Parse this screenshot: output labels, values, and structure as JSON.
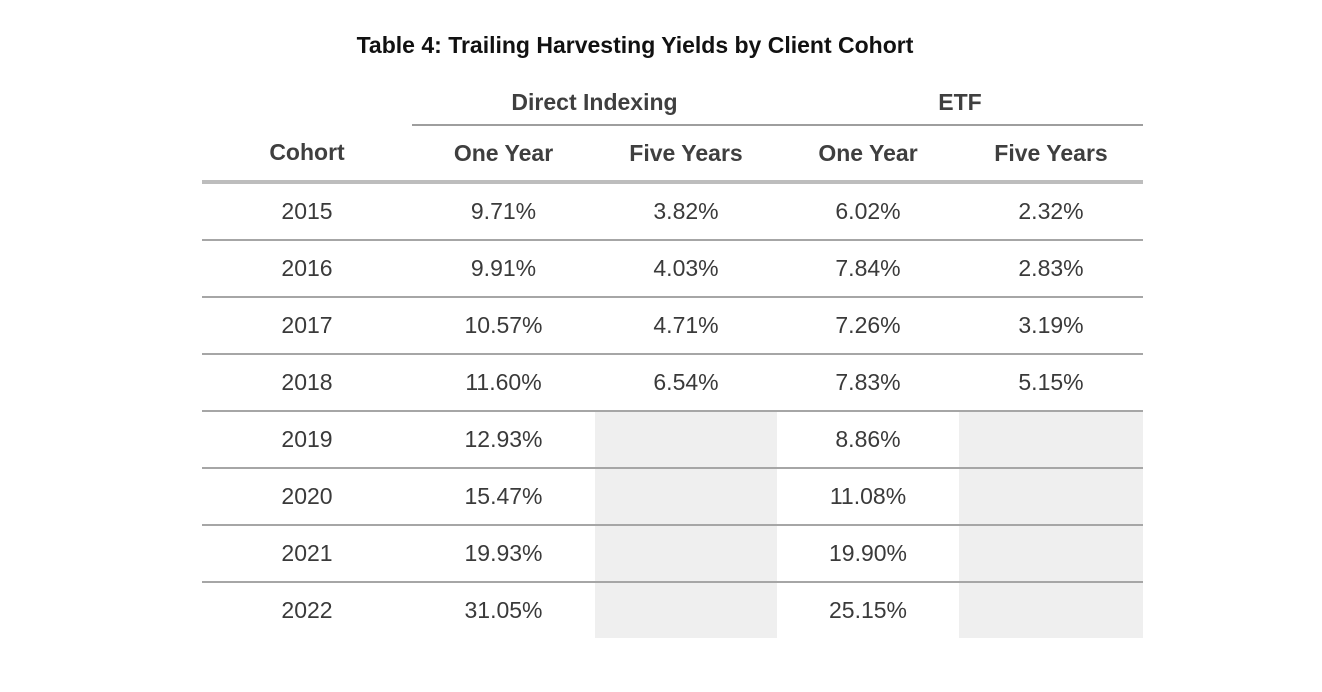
{
  "title": "Table 4: Trailing Harvesting Yields by Client Cohort",
  "column_groups": [
    {
      "label": "Direct Indexing",
      "span": 2
    },
    {
      "label": "ETF",
      "span": 2
    }
  ],
  "columns": [
    "Cohort",
    "One Year",
    "Five Years",
    "One Year",
    "Five Years"
  ],
  "rows": [
    {
      "cohort": "2015",
      "di_one": "9.71%",
      "di_five": "3.82%",
      "etf_one": "6.02%",
      "etf_five": "2.32%"
    },
    {
      "cohort": "2016",
      "di_one": "9.91%",
      "di_five": "4.03%",
      "etf_one": "7.84%",
      "etf_five": "2.83%"
    },
    {
      "cohort": "2017",
      "di_one": "10.57%",
      "di_five": "4.71%",
      "etf_one": "7.26%",
      "etf_five": "3.19%"
    },
    {
      "cohort": "2018",
      "di_one": "11.60%",
      "di_five": "6.54%",
      "etf_one": "7.83%",
      "etf_five": "5.15%"
    },
    {
      "cohort": "2019",
      "di_one": "12.93%",
      "di_five": "",
      "etf_one": "8.86%",
      "etf_five": ""
    },
    {
      "cohort": "2020",
      "di_one": "15.47%",
      "di_five": "",
      "etf_one": "11.08%",
      "etf_five": ""
    },
    {
      "cohort": "2021",
      "di_one": "19.93%",
      "di_five": "",
      "etf_one": "19.90%",
      "etf_five": ""
    },
    {
      "cohort": "2022",
      "di_one": "31.05%",
      "di_five": "",
      "etf_one": "25.15%",
      "etf_five": ""
    }
  ],
  "colors": {
    "empty_cell": "#efefef",
    "rule": "#a6a6a6",
    "header_rule": "#bdbdbd"
  }
}
